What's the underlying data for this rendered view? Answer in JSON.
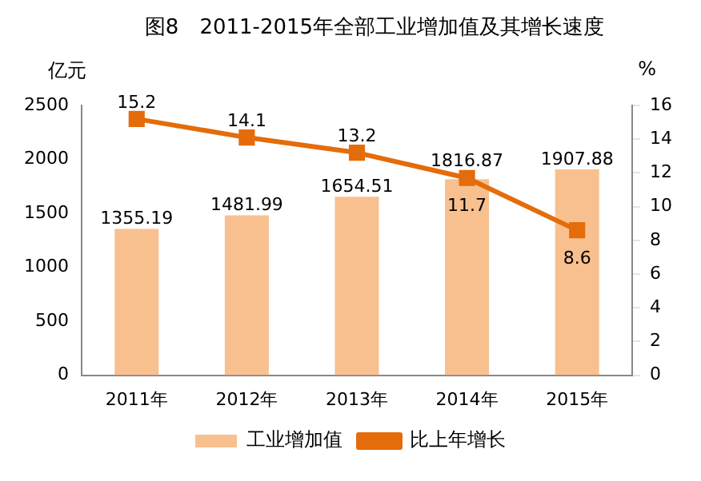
{
  "chart_data": {
    "type": "bar",
    "title": "图8　2011-2015年全部工业增加值及其增长速度",
    "ylabel": "亿元",
    "y2label": "%",
    "categories": [
      "2011年",
      "2012年",
      "2013年",
      "2014年",
      "2015年"
    ],
    "series": [
      {
        "name": "工业增加值",
        "color": "#f9c08f",
        "values": [
          1355.19,
          1481.99,
          1654.51,
          1816.87,
          1907.88
        ]
      },
      {
        "name": "比上年增长",
        "type": "line",
        "axis": "y2",
        "color": "#e46c0a",
        "values": [
          15.2,
          14.1,
          13.2,
          11.7,
          8.6
        ]
      }
    ],
    "ylim": [
      0,
      2500
    ],
    "yticks": [
      0,
      500,
      1000,
      1500,
      2000,
      2500
    ],
    "y2lim": [
      0,
      16
    ],
    "y2ticks": [
      0,
      2,
      4,
      6,
      8,
      10,
      12,
      14,
      16
    ],
    "data_labels": true,
    "legend": "bottom",
    "grid": false,
    "marker": "square",
    "line_style": "solid"
  }
}
